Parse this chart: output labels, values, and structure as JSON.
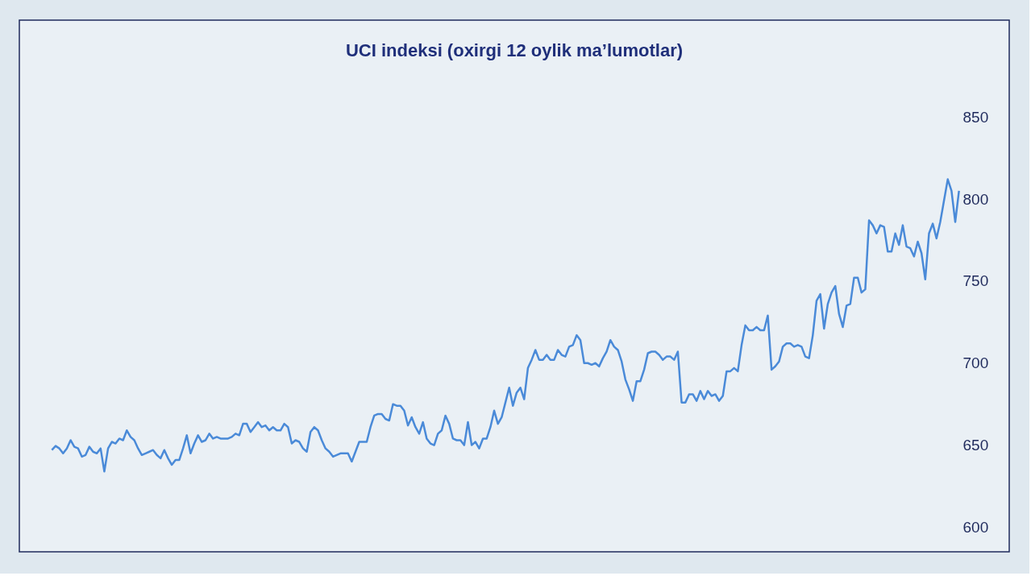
{
  "chart_data": {
    "type": "line",
    "title": "UCI indeksi (oxirgi 12 oylik ma’lumotlar)",
    "categories": [
      null,
      null,
      null,
      null,
      null,
      null,
      null,
      null,
      null,
      null,
      null,
      null,
      null,
      null,
      null,
      null,
      null,
      null,
      null,
      null,
      null,
      null,
      null,
      null,
      null,
      null,
      null,
      null,
      null,
      null,
      null,
      null,
      null,
      null,
      null,
      null,
      null,
      null,
      null,
      null,
      null,
      null,
      null,
      null,
      null,
      null,
      null,
      null,
      null,
      null,
      null,
      null,
      null,
      null,
      null,
      null,
      null,
      null,
      null,
      null,
      null,
      null,
      null,
      null,
      null,
      null,
      null,
      null,
      null,
      null,
      null,
      null,
      null,
      null,
      null,
      null,
      null,
      null,
      null,
      null,
      null,
      null,
      null,
      null,
      null,
      null,
      null,
      null,
      null,
      null,
      null,
      null,
      null,
      null,
      null,
      null,
      null,
      null,
      null,
      null,
      null,
      null,
      null,
      null,
      null,
      null,
      null,
      null,
      null,
      null,
      null,
      null,
      null,
      null,
      null,
      null,
      null,
      null,
      null,
      null,
      null,
      null,
      null,
      null,
      null,
      null,
      null,
      null,
      null,
      null,
      null,
      null,
      null,
      null,
      null,
      null,
      null,
      null,
      null,
      null,
      null,
      null,
      null,
      null,
      null,
      null,
      null,
      null,
      null,
      null,
      null,
      null,
      null,
      null,
      null,
      null,
      null,
      null,
      null,
      null,
      null,
      null,
      null,
      null,
      null,
      null,
      null,
      null,
      null,
      null,
      null,
      null,
      null,
      null,
      null,
      null,
      null,
      null,
      null,
      null,
      null,
      null,
      null,
      null,
      null,
      null,
      null,
      null,
      null,
      null,
      null,
      null,
      null,
      null,
      null,
      null,
      null,
      null,
      null,
      null,
      null,
      null,
      null,
      null,
      null,
      null,
      null,
      null,
      null,
      null,
      null,
      null,
      null,
      null,
      null,
      null,
      null,
      null,
      null,
      null,
      null,
      null,
      null,
      null,
      null,
      null,
      null,
      null,
      null,
      null,
      null,
      null,
      null,
      null,
      null,
      null,
      null,
      null,
      null,
      null,
      null,
      null,
      null
    ],
    "series": [
      {
        "color": "#4a8ad8",
        "values": [
          647,
          649.5,
          648,
          645,
          648,
          653,
          649,
          648,
          643,
          644,
          649,
          646,
          645,
          648,
          634,
          648,
          652,
          651,
          654,
          653,
          659,
          655,
          653,
          648,
          644,
          645,
          646,
          647,
          644,
          642,
          647,
          642,
          638,
          641,
          641,
          648,
          656,
          645,
          651,
          656,
          652,
          653,
          657,
          654,
          655,
          654,
          654,
          654,
          655,
          657,
          656,
          663,
          663,
          658,
          661,
          664,
          661,
          662,
          659,
          661,
          659,
          659,
          663,
          661,
          651,
          653,
          652,
          648,
          646,
          658,
          661,
          659,
          653,
          648,
          646,
          643,
          644,
          645,
          645,
          645,
          640,
          646,
          652,
          652,
          652,
          661,
          668,
          669,
          669,
          666,
          665,
          675,
          674,
          674,
          671,
          662,
          667,
          661,
          657,
          664,
          654,
          651,
          650,
          657,
          659,
          668,
          663,
          654,
          653,
          653,
          650,
          664,
          650,
          652,
          648,
          654,
          654,
          661,
          671,
          663,
          667,
          676,
          685,
          674,
          682,
          685,
          678,
          697,
          702,
          708,
          702,
          702,
          705,
          702,
          702,
          708,
          705,
          704,
          710,
          711,
          717,
          714,
          700,
          700,
          699,
          700,
          698,
          703,
          707,
          714,
          710,
          708,
          701,
          690,
          684,
          677,
          689,
          689,
          696,
          706,
          707,
          707,
          705,
          702,
          704,
          704,
          702,
          707,
          676,
          676,
          681,
          681,
          677,
          683,
          678,
          683,
          680,
          681,
          677,
          680,
          695,
          695,
          697,
          695,
          711,
          723,
          720,
          720,
          722,
          720,
          720,
          729,
          696,
          698,
          701,
          710,
          712,
          712,
          710,
          711,
          710,
          704,
          703,
          717,
          738,
          742,
          721,
          736,
          743,
          747,
          730,
          722,
          735,
          736,
          752,
          752,
          743,
          745,
          787,
          784,
          779,
          784,
          783,
          768,
          768,
          779,
          772,
          784,
          771,
          770,
          765,
          774,
          767,
          751,
          779,
          785,
          776,
          786,
          799,
          812,
          805,
          786,
          805
        ]
      }
    ],
    "ylim": [
      585,
      909
    ],
    "yticks": [
      600,
      650,
      700,
      750,
      800,
      850
    ],
    "grid": false,
    "marker": "none",
    "line_style": "solid"
  }
}
